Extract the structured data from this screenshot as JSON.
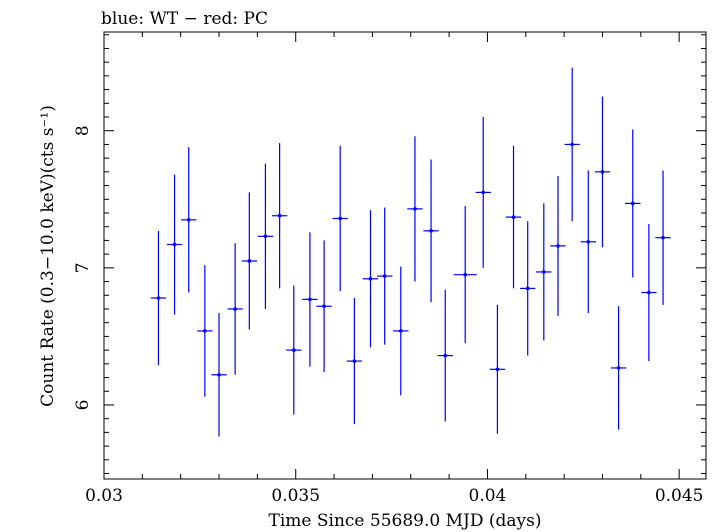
{
  "chart_data": {
    "type": "scatter",
    "title": "blue: WT − red: PC",
    "xlabel": "Time Since 55689.0 MJD (days)",
    "ylabel": "Count Rate (0.3−10.0 keV)(cts s⁻¹)",
    "xlim": [
      0.03,
      0.0457
    ],
    "ylim": [
      5.46,
      8.72
    ],
    "x_ticks": [
      0.03,
      0.035,
      0.04,
      0.045
    ],
    "x_tick_labels": [
      "0.03",
      "0.035",
      "0.04",
      "0.045"
    ],
    "y_ticks": [
      6,
      7,
      8
    ],
    "y_tick_labels": [
      "6",
      "7",
      "8"
    ],
    "grid": false,
    "series": [
      {
        "color": "#0000ff",
        "points": [
          {
            "x": 0.03142,
            "y": 6.78,
            "xerr": 0.0002,
            "yerr": 0.49
          },
          {
            "x": 0.03184,
            "y": 7.17,
            "xerr": 0.0002,
            "yerr": 0.51
          },
          {
            "x": 0.03221,
            "y": 7.35,
            "xerr": 0.0002,
            "yerr": 0.53
          },
          {
            "x": 0.03263,
            "y": 6.54,
            "xerr": 0.0002,
            "yerr": 0.48
          },
          {
            "x": 0.033,
            "y": 6.22,
            "xerr": 0.0002,
            "yerr": 0.45
          },
          {
            "x": 0.03342,
            "y": 6.7,
            "xerr": 0.0002,
            "yerr": 0.48
          },
          {
            "x": 0.03379,
            "y": 7.05,
            "xerr": 0.0002,
            "yerr": 0.5
          },
          {
            "x": 0.03421,
            "y": 7.23,
            "xerr": 0.0002,
            "yerr": 0.53
          },
          {
            "x": 0.03458,
            "y": 7.38,
            "xerr": 0.0002,
            "yerr": 0.53
          },
          {
            "x": 0.03495,
            "y": 6.4,
            "xerr": 0.0002,
            "yerr": 0.47
          },
          {
            "x": 0.03537,
            "y": 6.77,
            "xerr": 0.0002,
            "yerr": 0.49
          },
          {
            "x": 0.03574,
            "y": 6.72,
            "xerr": 0.0002,
            "yerr": 0.48
          },
          {
            "x": 0.03616,
            "y": 7.36,
            "xerr": 0.0002,
            "yerr": 0.53
          },
          {
            "x": 0.03653,
            "y": 6.32,
            "xerr": 0.0002,
            "yerr": 0.46
          },
          {
            "x": 0.03695,
            "y": 6.92,
            "xerr": 0.0002,
            "yerr": 0.5
          },
          {
            "x": 0.03732,
            "y": 6.94,
            "xerr": 0.0002,
            "yerr": 0.5
          },
          {
            "x": 0.03774,
            "y": 6.54,
            "xerr": 0.0002,
            "yerr": 0.47
          },
          {
            "x": 0.03811,
            "y": 7.43,
            "xerr": 0.0002,
            "yerr": 0.53
          },
          {
            "x": 0.03853,
            "y": 7.27,
            "xerr": 0.0002,
            "yerr": 0.52
          },
          {
            "x": 0.0389,
            "y": 6.36,
            "xerr": 0.0002,
            "yerr": 0.48
          },
          {
            "x": 0.03942,
            "y": 6.95,
            "xerr": 0.0003,
            "yerr": 0.5
          },
          {
            "x": 0.03989,
            "y": 7.55,
            "xerr": 0.0002,
            "yerr": 0.55
          },
          {
            "x": 0.04026,
            "y": 6.26,
            "xerr": 0.0002,
            "yerr": 0.47
          },
          {
            "x": 0.04068,
            "y": 7.37,
            "xerr": 0.0002,
            "yerr": 0.52
          },
          {
            "x": 0.04105,
            "y": 6.85,
            "xerr": 0.0002,
            "yerr": 0.49
          },
          {
            "x": 0.04147,
            "y": 6.97,
            "xerr": 0.0002,
            "yerr": 0.5
          },
          {
            "x": 0.04184,
            "y": 7.16,
            "xerr": 0.0002,
            "yerr": 0.51
          },
          {
            "x": 0.04221,
            "y": 7.9,
            "xerr": 0.0002,
            "yerr": 0.56
          },
          {
            "x": 0.04263,
            "y": 7.19,
            "xerr": 0.0002,
            "yerr": 0.52
          },
          {
            "x": 0.043,
            "y": 7.7,
            "xerr": 0.0002,
            "yerr": 0.55
          },
          {
            "x": 0.04342,
            "y": 6.27,
            "xerr": 0.0002,
            "yerr": 0.45
          },
          {
            "x": 0.04379,
            "y": 7.47,
            "xerr": 0.0002,
            "yerr": 0.54
          },
          {
            "x": 0.04421,
            "y": 6.82,
            "xerr": 0.0002,
            "yerr": 0.5
          },
          {
            "x": 0.04458,
            "y": 7.22,
            "xerr": 0.0002,
            "yerr": 0.49
          }
        ]
      }
    ]
  }
}
